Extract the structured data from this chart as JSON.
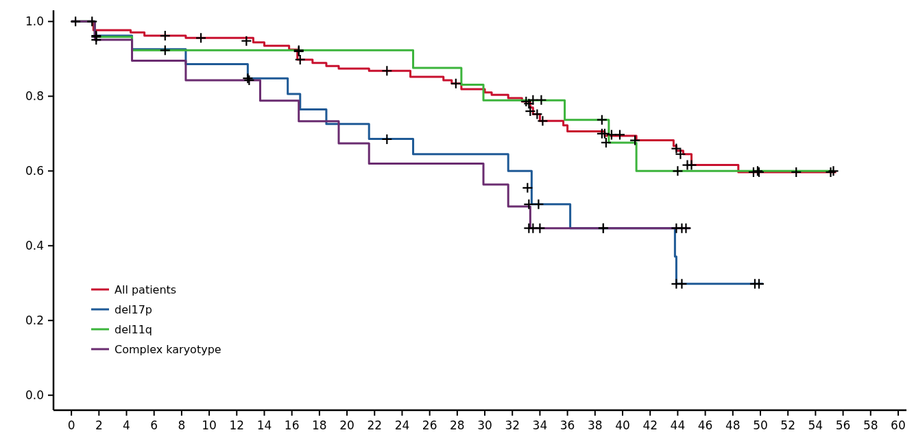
{
  "chart_data": {
    "type": "step",
    "xlim": [
      -1.3,
      60.6
    ],
    "ylim": [
      -0.04,
      1.03
    ],
    "xticks": [
      0,
      2,
      4,
      6,
      8,
      10,
      12,
      14,
      16,
      18,
      20,
      22,
      24,
      26,
      28,
      30,
      32,
      34,
      36,
      38,
      40,
      42,
      44,
      46,
      48,
      50,
      52,
      54,
      56,
      58,
      60
    ],
    "yticks": [
      {
        "value": 0,
        "label": "0.0"
      },
      {
        "value": 0.2,
        "label": "0.2"
      },
      {
        "value": 0.4,
        "label": "0.4"
      },
      {
        "value": 0.6,
        "label": "0.6"
      },
      {
        "value": 0.8,
        "label": "0.8"
      },
      {
        "value": 1,
        "label": "1.0"
      }
    ],
    "legend": "bottom left",
    "series": [
      {
        "name": "All patients",
        "color": "#c8102e",
        "x": [
          0,
          1.6,
          4.3,
          5.3,
          8.3,
          13.2,
          14.0,
          15.8,
          16.4,
          17.5,
          18.5,
          19.4,
          21.6,
          24.6,
          27.0,
          27.6,
          28.3,
          30.0,
          30.5,
          31.7,
          32.7,
          33.3,
          33.5,
          34.0,
          35.7,
          36.0,
          38.7,
          41.0,
          43.7,
          43.9,
          44.4,
          45.0,
          48.4,
          55.5
        ],
        "values": [
          1.0,
          0.977,
          0.971,
          0.962,
          0.956,
          0.944,
          0.935,
          0.925,
          0.898,
          0.889,
          0.881,
          0.874,
          0.868,
          0.852,
          0.843,
          0.834,
          0.819,
          0.81,
          0.804,
          0.795,
          0.786,
          0.77,
          0.752,
          0.734,
          0.722,
          0.706,
          0.694,
          0.682,
          0.667,
          0.654,
          0.645,
          0.616,
          0.597,
          0.597
        ]
      },
      {
        "name": "del17p",
        "color": "#1f5a96",
        "x": [
          0,
          1.7,
          4.4,
          8.3,
          12.8,
          15.7,
          16.6,
          18.5,
          21.6,
          24.8,
          31.7,
          33.4,
          36.2,
          43.8,
          43.9,
          50.2
        ],
        "values": [
          1.0,
          0.962,
          0.926,
          0.886,
          0.848,
          0.806,
          0.765,
          0.726,
          0.686,
          0.645,
          0.6,
          0.511,
          0.447,
          0.371,
          0.298,
          0.298
        ]
      },
      {
        "name": "del11q",
        "color": "#3cb43c",
        "x": [
          0,
          1.7,
          4.4,
          24.8,
          28.3,
          29.9,
          35.8,
          39.0,
          41.0,
          55.3
        ],
        "values": [
          1.0,
          0.959,
          0.923,
          0.876,
          0.831,
          0.789,
          0.737,
          0.676,
          0.6,
          0.6
        ]
      },
      {
        "name": "Complex karyotype",
        "color": "#6a2c70",
        "x": [
          0,
          1.7,
          4.4,
          8.3,
          13.7,
          16.5,
          19.4,
          21.6,
          29.9,
          31.7,
          33.3,
          44.9
        ],
        "values": [
          1.0,
          0.951,
          0.895,
          0.843,
          0.788,
          0.733,
          0.674,
          0.62,
          0.564,
          0.505,
          0.447,
          0.447
        ]
      },
      {
        "type": "scatter",
        "marker": "cross",
        "color": "#000000",
        "x": [
          0.3,
          1.5,
          6.8,
          9.4,
          12.7,
          16.5,
          16.6,
          22.9,
          27.9,
          33.0,
          33.2,
          33.5,
          34.1,
          33.3,
          33.8,
          34.2,
          38.5,
          38.7,
          39.2,
          39.8,
          40.9,
          43.9,
          44.2,
          44.7,
          45.0,
          49.5,
          49.9,
          52.6,
          55.1
        ],
        "values": [
          1.0,
          1.0,
          0.962,
          0.956,
          0.948,
          0.92,
          0.898,
          0.868,
          0.834,
          0.786,
          0.78,
          0.79,
          0.79,
          0.76,
          0.752,
          0.734,
          0.7,
          0.7,
          0.697,
          0.697,
          0.682,
          0.66,
          0.645,
          0.616,
          0.616,
          0.597,
          0.597,
          0.597,
          0.597
        ]
      },
      {
        "type": "scatter",
        "marker": "cross",
        "color": "#000000",
        "x": [
          1.8,
          6.8,
          16.5,
          38.5,
          38.8,
          44.0,
          49.8,
          55.3
        ],
        "values": [
          0.959,
          0.923,
          0.923,
          0.737,
          0.676,
          0.6,
          0.6,
          0.6
        ]
      },
      {
        "type": "scatter",
        "marker": "cross",
        "color": "#000000",
        "x": [
          1.8,
          12.8,
          22.9,
          33.1,
          33.2,
          33.9,
          38.6,
          43.9,
          44.3,
          49.6,
          49.9
        ],
        "values": [
          0.962,
          0.848,
          0.685,
          0.555,
          0.511,
          0.511,
          0.447,
          0.298,
          0.298,
          0.298,
          0.298
        ]
      },
      {
        "type": "scatter",
        "marker": "cross",
        "color": "#000000",
        "x": [
          1.8,
          12.9,
          33.2,
          33.5,
          34.0,
          38.6,
          43.9,
          44.3,
          44.6
        ],
        "values": [
          0.951,
          0.843,
          0.447,
          0.447,
          0.447,
          0.447,
          0.447,
          0.447,
          0.447
        ]
      }
    ]
  }
}
